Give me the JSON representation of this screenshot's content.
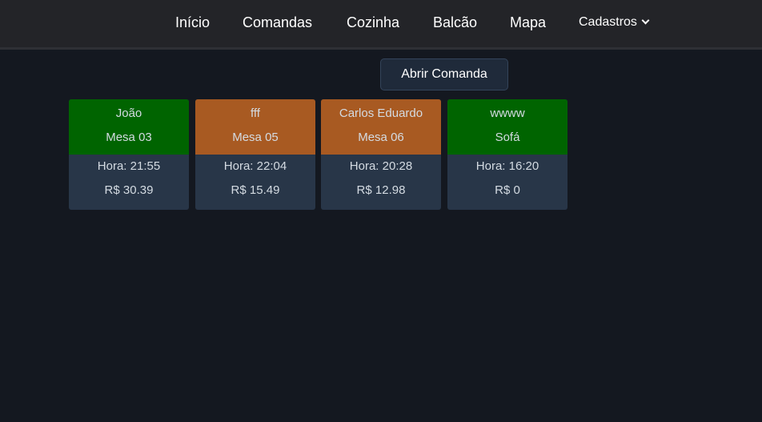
{
  "nav": {
    "items": [
      "Início",
      "Comandas",
      "Cozinha",
      "Balcão",
      "Mapa"
    ],
    "dropdown": "Cadastros"
  },
  "open_button": "Abrir Comanda",
  "colors": {
    "occupied": "#006400",
    "pending": "#a85a22",
    "card_bottom": "#283648"
  },
  "cards": [
    {
      "name": "João",
      "table": "Mesa 03",
      "time": "Hora: 21:55",
      "total": "R$ 30.39",
      "status": "occupied"
    },
    {
      "name": "fff",
      "table": "Mesa 05",
      "time": "Hora: 22:04",
      "total": "R$ 15.49",
      "status": "pending"
    },
    {
      "name": "Carlos Eduardo",
      "table": "Mesa 06",
      "time": "Hora: 20:28",
      "total": "R$ 12.98",
      "status": "pending"
    },
    {
      "name": "wwww",
      "table": "Sofá",
      "time": "Hora: 16:20",
      "total": "R$ 0",
      "status": "occupied"
    }
  ]
}
